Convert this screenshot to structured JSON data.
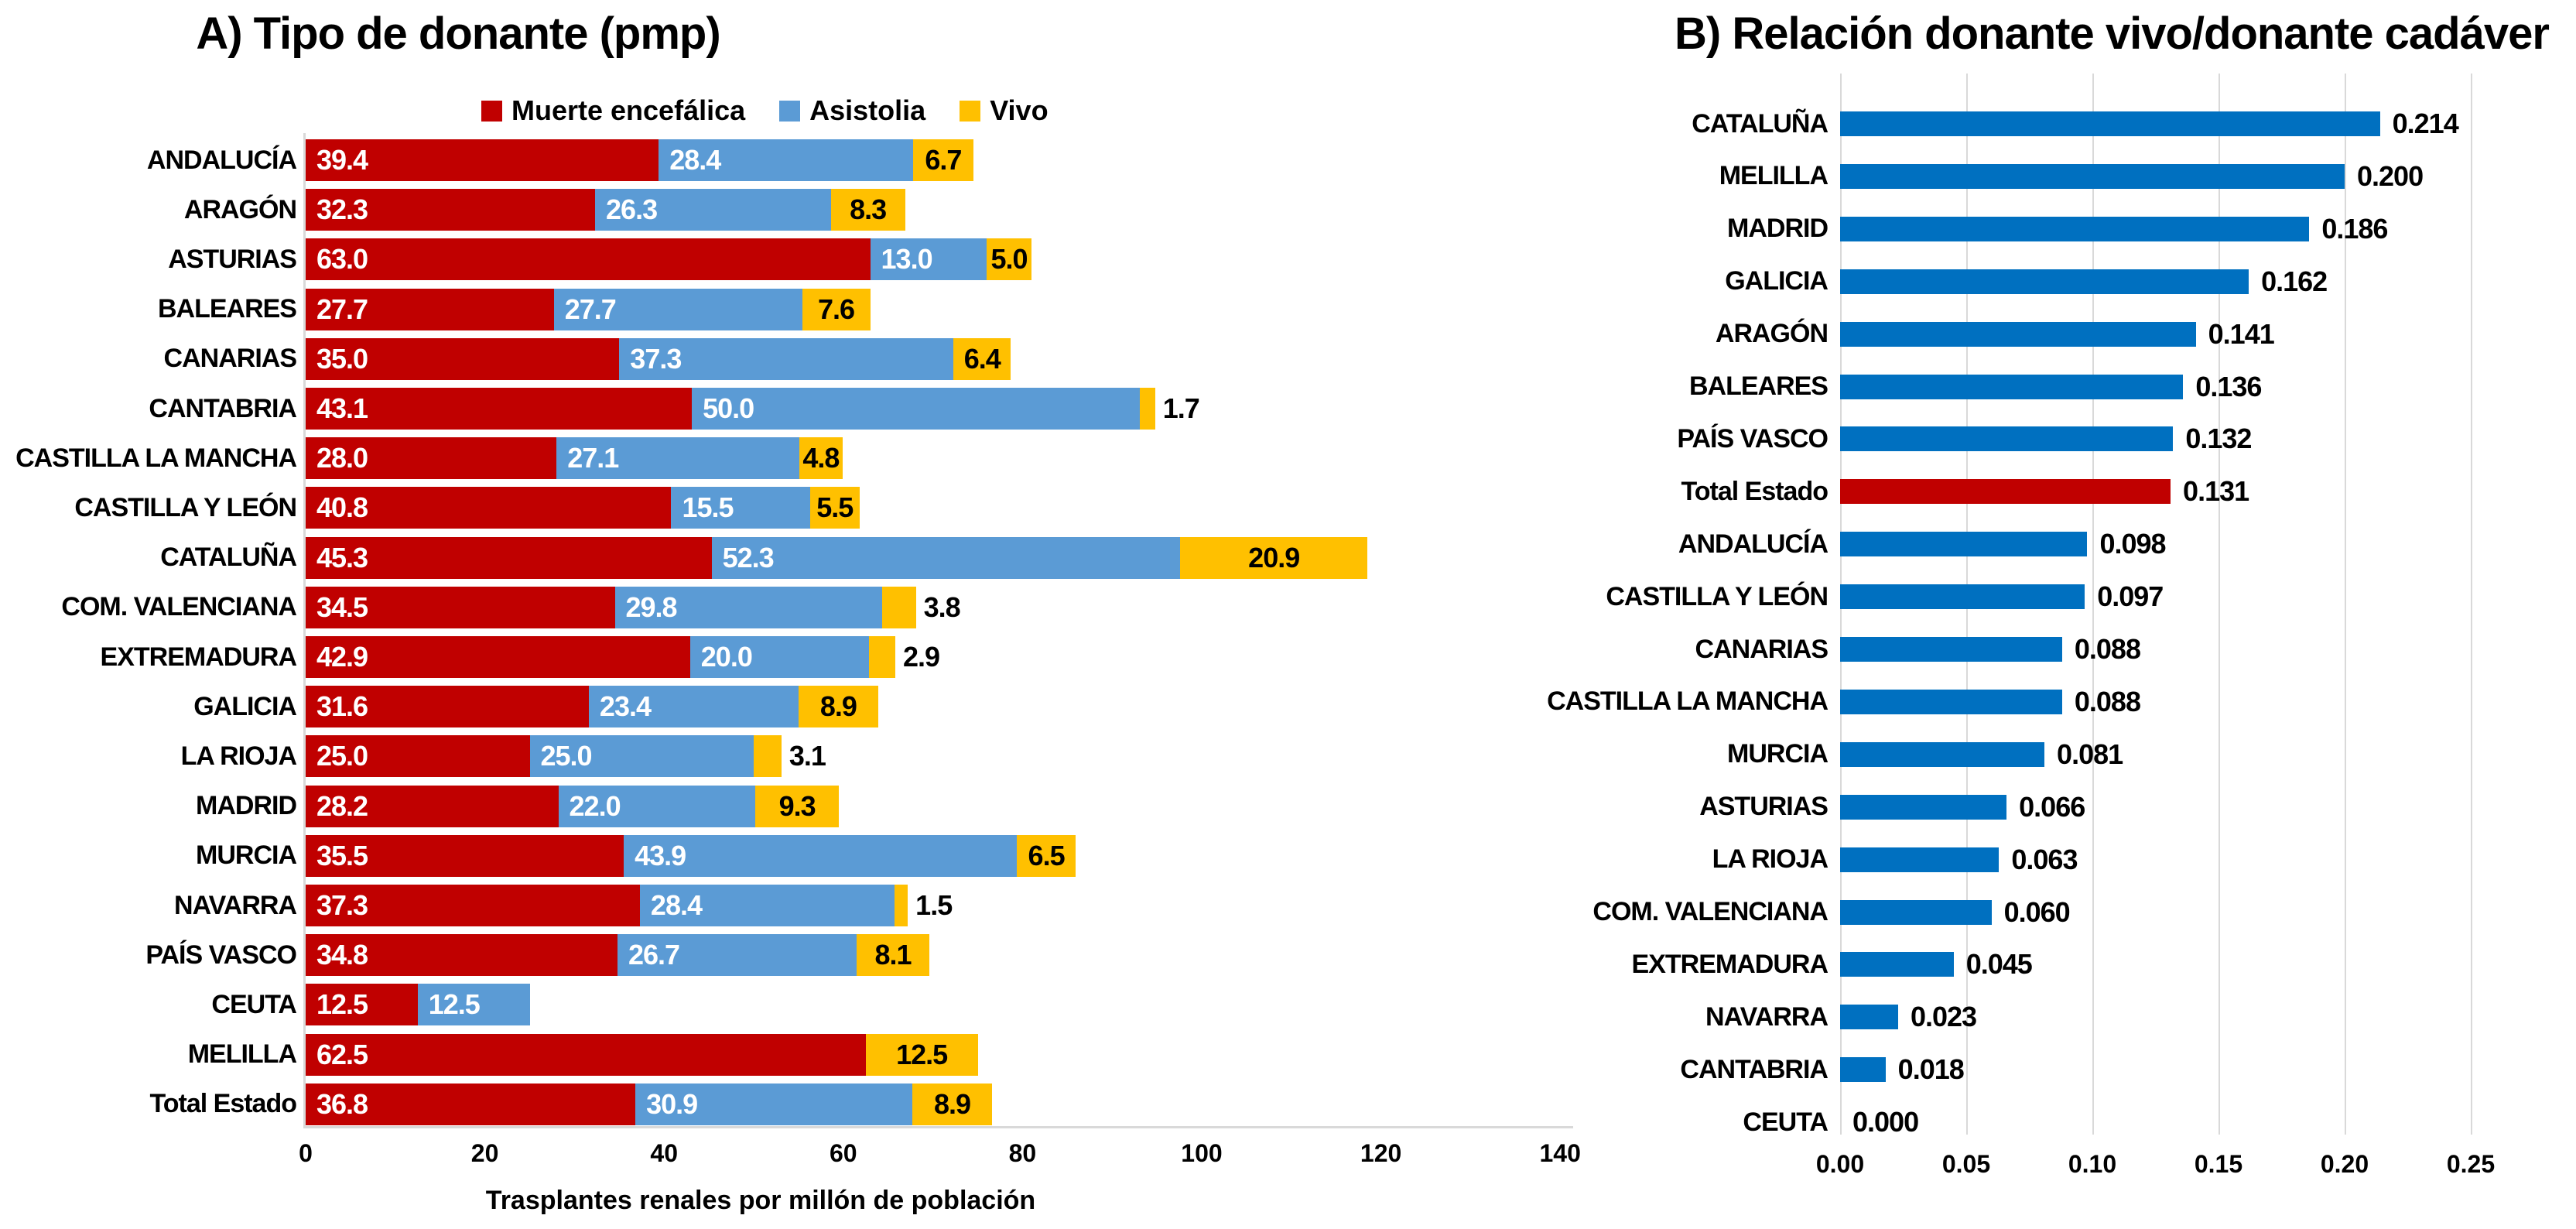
{
  "figure": {
    "background": "#FFFFFF",
    "text_color": "#000000",
    "grid_color": "#D9D9D9"
  },
  "chart_data": [
    {
      "id": "tipo-donante",
      "type": "bar",
      "orientation": "horizontal",
      "stacked": true,
      "title": "A) Tipo de donante (pmp)",
      "xlabel": "Trasplantes renales por millón de población",
      "xlim": [
        0,
        140
      ],
      "xticks": [
        0,
        20,
        40,
        60,
        80,
        100,
        120,
        140
      ],
      "grid": false,
      "legend_position": "top",
      "value_label_decimals": 1,
      "categories": [
        "ANDALUCÍA",
        "ARAGÓN",
        "ASTURIAS",
        "BALEARES",
        "CANARIAS",
        "CANTABRIA",
        "CASTILLA LA MANCHA",
        "CASTILLA Y LEÓN",
        "CATALUÑA",
        "COM. VALENCIANA",
        "EXTREMADURA",
        "GALICIA",
        "LA RIOJA",
        "MADRID",
        "MURCIA",
        "NAVARRA",
        "PAÍS VASCO",
        "CEUTA",
        "MELILLA",
        "Total Estado"
      ],
      "series": [
        {
          "name": "Muerte encefálica",
          "color": "#C00000",
          "label_color": "#FFFFFF",
          "values": [
            39.4,
            32.3,
            63.0,
            27.7,
            35.0,
            43.1,
            28.0,
            40.8,
            45.3,
            34.5,
            42.9,
            31.6,
            25.0,
            28.2,
            35.5,
            37.3,
            34.8,
            12.5,
            62.5,
            36.8
          ]
        },
        {
          "name": "Asistolia",
          "color": "#5B9BD5",
          "label_color": "#FFFFFF",
          "values": [
            28.4,
            26.3,
            13.0,
            27.7,
            37.3,
            50.0,
            27.1,
            15.5,
            52.3,
            29.8,
            20.0,
            23.4,
            25.0,
            22.0,
            43.9,
            28.4,
            26.7,
            12.5,
            0,
            30.9
          ]
        },
        {
          "name": "Vivo",
          "color": "#FFC000",
          "label_color": "#000000",
          "values": [
            6.7,
            8.3,
            5.0,
            7.6,
            6.4,
            1.7,
            4.8,
            5.5,
            20.9,
            3.8,
            2.9,
            8.9,
            3.1,
            9.3,
            6.5,
            1.5,
            8.1,
            0,
            12.5,
            8.9
          ]
        }
      ]
    },
    {
      "id": "relacion-vivo-cadaver",
      "type": "bar",
      "orientation": "horizontal",
      "stacked": false,
      "title": "B) Relación donante vivo/donante cadáver",
      "xlim": [
        0,
        0.25
      ],
      "xticks": [
        "0.00",
        "0.05",
        "0.10",
        "0.15",
        "0.20",
        "0.25"
      ],
      "xtick_step": 0.05,
      "grid": true,
      "value_label_decimals": 3,
      "bar_color": "#0070C0",
      "highlight_category": "Total Estado",
      "highlight_color": "#C00000",
      "categories": [
        "CATALUÑA",
        "MELILLA",
        "MADRID",
        "GALICIA",
        "ARAGÓN",
        "BALEARES",
        "PAÍS VASCO",
        "Total Estado",
        "ANDALUCÍA",
        "CASTILLA Y LEÓN",
        "CANARIAS",
        "CASTILLA LA MANCHA",
        "MURCIA",
        "ASTURIAS",
        "LA RIOJA",
        "COM. VALENCIANA",
        "EXTREMADURA",
        "NAVARRA",
        "CANTABRIA",
        "CEUTA"
      ],
      "values": [
        0.214,
        0.2,
        0.186,
        0.162,
        0.141,
        0.136,
        0.132,
        0.131,
        0.098,
        0.097,
        0.088,
        0.088,
        0.081,
        0.066,
        0.063,
        0.06,
        0.045,
        0.023,
        0.018,
        0.0
      ]
    }
  ]
}
